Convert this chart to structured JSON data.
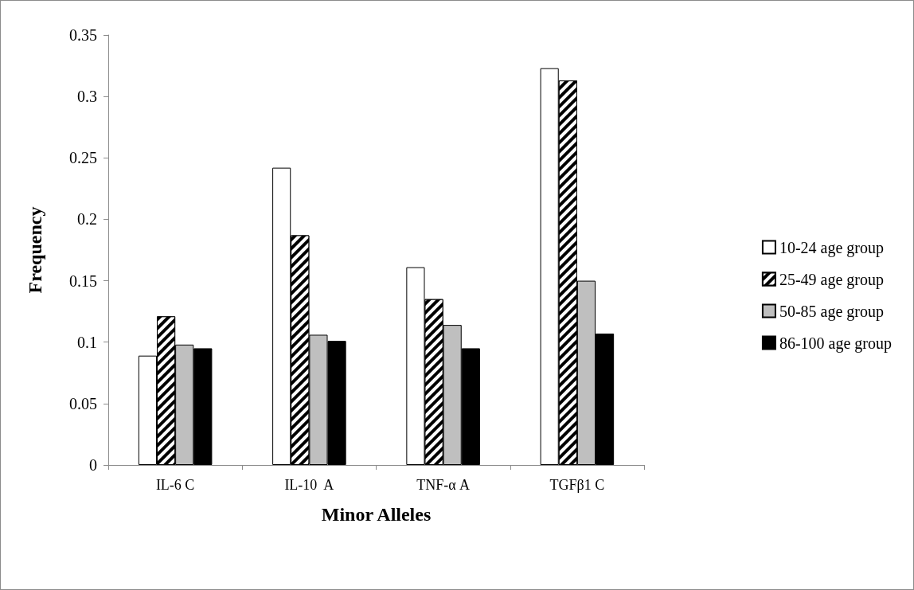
{
  "chart_data": {
    "type": "bar",
    "xlabel": "Minor Alleles",
    "ylabel": "Frequency",
    "categories": [
      "IL-6 C",
      "IL-10  A",
      "TNF-α A",
      "TGFβ1 C"
    ],
    "series": [
      {
        "name": "10-24 age group",
        "color": "#ffffff",
        "values": [
          0.089,
          0.242,
          0.161,
          0.323
        ]
      },
      {
        "name": "25-49 age group",
        "color": "#000000",
        "values": [
          0.121,
          0.187,
          0.135,
          0.313
        ]
      },
      {
        "name": "50-85 age group",
        "color": "#bfbfbf",
        "values": [
          0.098,
          0.106,
          0.114,
          0.15
        ]
      },
      {
        "name": "86-100 age group",
        "color": "#000000",
        "values": [
          0.095,
          0.101,
          0.095,
          0.107
        ]
      }
    ],
    "ylim": [
      0,
      0.35
    ],
    "yticks": [
      0,
      0.05,
      0.1,
      0.15,
      0.2,
      0.25,
      0.3,
      0.35
    ],
    "grid": false,
    "legend": "right"
  }
}
